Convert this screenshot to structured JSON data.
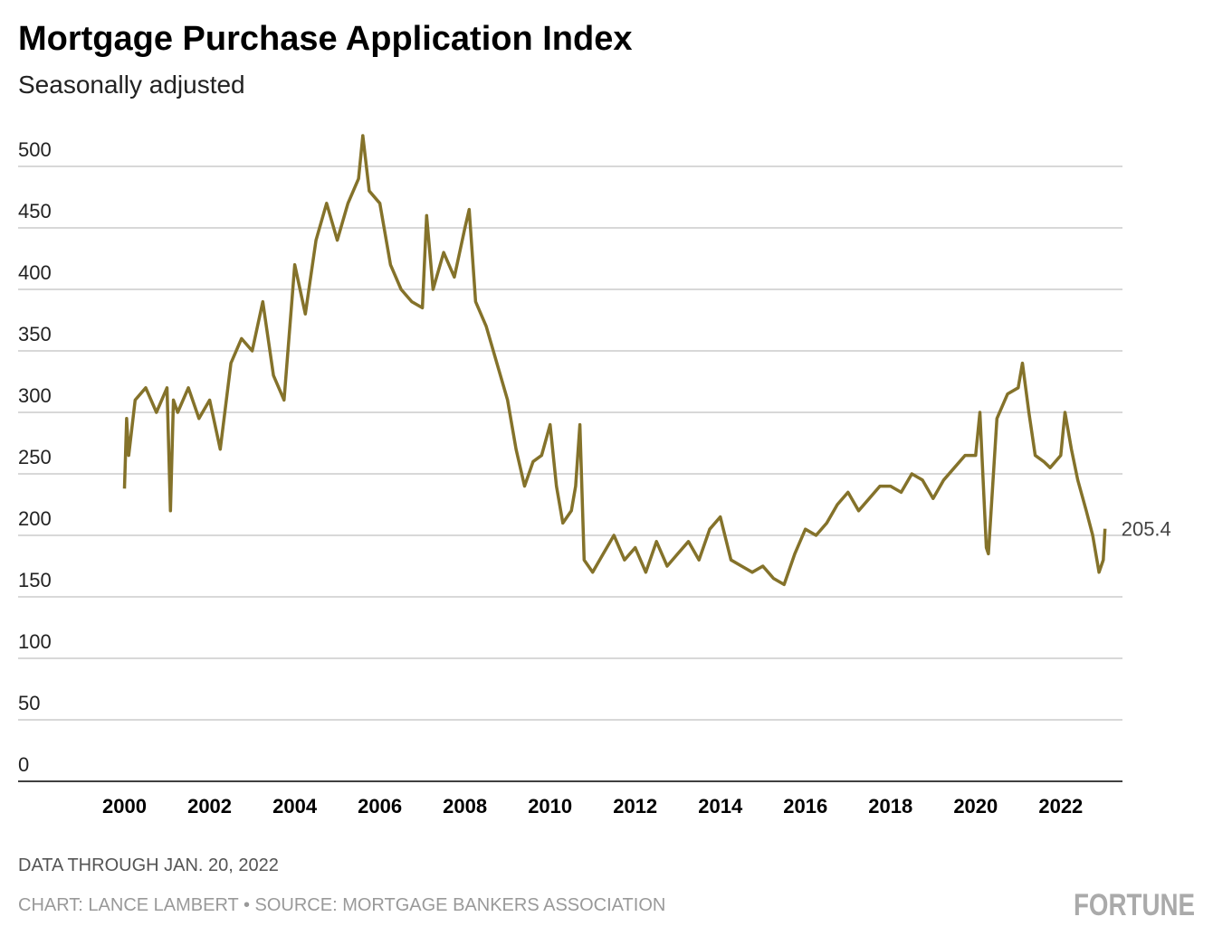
{
  "chart_data": {
    "type": "line",
    "title": "Mortgage Purchase Application Index",
    "subtitle": "Seasonally adjusted",
    "note": "DATA THROUGH JAN. 20, 2022",
    "source": "CHART: LANCE LAMBERT • SOURCE: MORTGAGE BANKERS ASSOCIATION",
    "brand": "FORTUNE",
    "annotation": "205.4",
    "x": [
      2000.0,
      2000.05,
      2000.1,
      2000.25,
      2000.5,
      2000.75,
      2001.0,
      2001.08,
      2001.15,
      2001.25,
      2001.5,
      2001.75,
      2002.0,
      2002.25,
      2002.5,
      2002.75,
      2003.0,
      2003.25,
      2003.5,
      2003.75,
      2004.0,
      2004.25,
      2004.5,
      2004.75,
      2005.0,
      2005.25,
      2005.5,
      2005.6,
      2005.75,
      2006.0,
      2006.25,
      2006.5,
      2006.75,
      2007.0,
      2007.1,
      2007.25,
      2007.5,
      2007.75,
      2008.0,
      2008.1,
      2008.25,
      2008.5,
      2008.75,
      2009.0,
      2009.2,
      2009.4,
      2009.6,
      2009.8,
      2010.0,
      2010.15,
      2010.3,
      2010.5,
      2010.6,
      2010.7,
      2010.8,
      2011.0,
      2011.25,
      2011.5,
      2011.75,
      2012.0,
      2012.25,
      2012.5,
      2012.75,
      2013.0,
      2013.25,
      2013.5,
      2013.75,
      2014.0,
      2014.25,
      2014.5,
      2014.75,
      2015.0,
      2015.25,
      2015.5,
      2015.75,
      2016.0,
      2016.25,
      2016.5,
      2016.75,
      2017.0,
      2017.25,
      2017.5,
      2017.75,
      2018.0,
      2018.25,
      2018.5,
      2018.75,
      2019.0,
      2019.25,
      2019.5,
      2019.75,
      2020.0,
      2020.1,
      2020.25,
      2020.3,
      2020.5,
      2020.75,
      2021.0,
      2021.1,
      2021.25,
      2021.4,
      2021.6,
      2021.75,
      2022.0,
      2022.1,
      2022.25,
      2022.4,
      2022.6,
      2022.75,
      2022.9,
      2023.0,
      2023.04
    ],
    "series": [
      {
        "name": "Index",
        "color": "#84722a",
        "values": [
          238,
          295,
          265,
          310,
          320,
          300,
          320,
          220,
          310,
          300,
          320,
          295,
          310,
          270,
          340,
          360,
          350,
          390,
          330,
          310,
          420,
          380,
          440,
          470,
          440,
          470,
          490,
          525,
          480,
          470,
          420,
          400,
          390,
          385,
          460,
          400,
          430,
          410,
          450,
          465,
          390,
          370,
          340,
          310,
          270,
          240,
          260,
          265,
          290,
          240,
          210,
          220,
          240,
          290,
          180,
          170,
          185,
          200,
          180,
          190,
          170,
          195,
          175,
          185,
          195,
          180,
          205,
          215,
          180,
          175,
          170,
          175,
          165,
          160,
          185,
          205,
          200,
          210,
          225,
          235,
          220,
          230,
          240,
          240,
          235,
          250,
          245,
          230,
          245,
          255,
          265,
          265,
          300,
          190,
          185,
          295,
          315,
          320,
          340,
          300,
          265,
          260,
          255,
          265,
          300,
          270,
          245,
          220,
          200,
          170,
          180,
          205.4
        ]
      }
    ],
    "xlim": [
      1997.5,
      2023.45
    ],
    "ylim": [
      0,
      500
    ],
    "xticks": [
      2000,
      2002,
      2004,
      2006,
      2008,
      2010,
      2012,
      2014,
      2016,
      2018,
      2020,
      2022
    ],
    "yticks": [
      0,
      50,
      100,
      150,
      200,
      250,
      300,
      350,
      400,
      450,
      500
    ],
    "grid": true
  }
}
